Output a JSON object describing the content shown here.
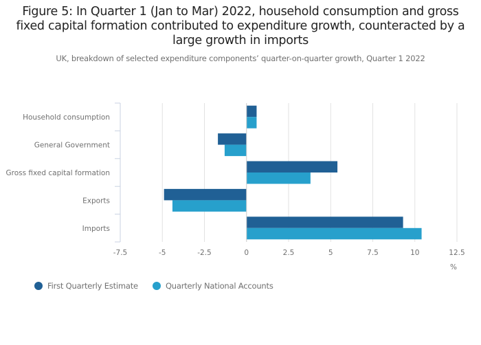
{
  "chart_data": {
    "type": "bar",
    "orientation": "horizontal",
    "title": "Figure 5: In Quarter 1 (Jan to Mar) 2022, household consumption and gross fixed capital formation contributed to expenditure growth, counteracted by a large growth in imports",
    "subtitle": "UK, breakdown of selected expenditure components’ quarter-on-quarter growth, Quarter 1 2022",
    "categories": [
      "Household consumption",
      "General Government",
      "Gross fixed capital formation",
      "Exports",
      "Imports"
    ],
    "series": [
      {
        "name": "First Quarterly Estimate",
        "color": "#206095",
        "values": [
          0.6,
          -1.7,
          5.4,
          -4.9,
          9.3
        ]
      },
      {
        "name": "Quarterly National Accounts",
        "color": "#27A0CC",
        "values": [
          0.6,
          -1.3,
          3.8,
          -4.4,
          10.4
        ]
      }
    ],
    "xlabel": "%",
    "ylabel": "",
    "xlim": [
      -7.5,
      12.5
    ],
    "xticks": [
      "-7.5",
      "-5",
      "-2.5",
      "0",
      "2.5",
      "5",
      "7.5",
      "10",
      "12.5"
    ],
    "grid": true,
    "legend": "bottom-left"
  }
}
